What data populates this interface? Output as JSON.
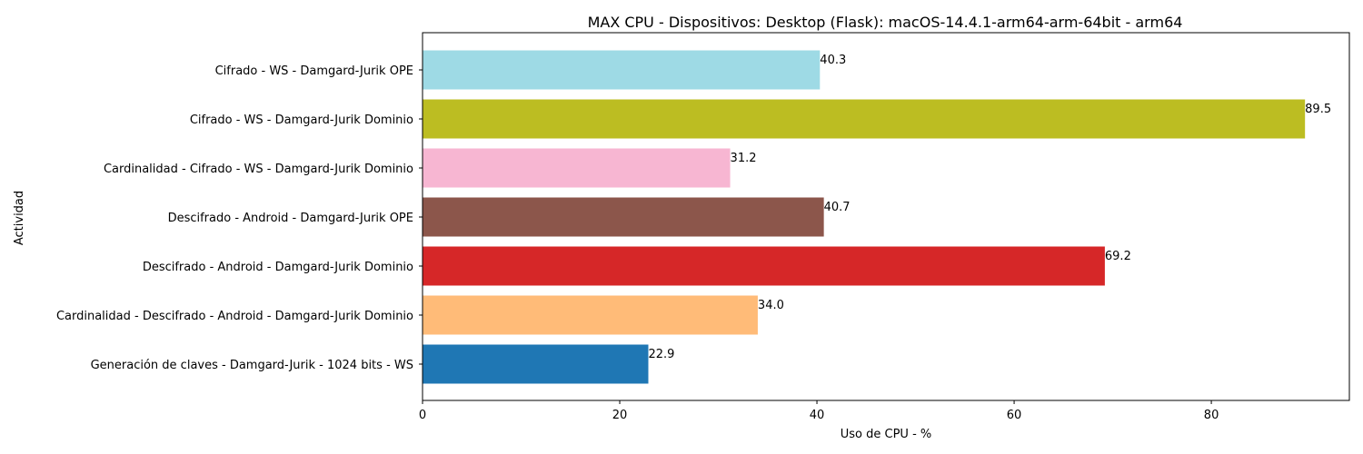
{
  "chart_data": {
    "type": "bar",
    "orientation": "horizontal",
    "title": "MAX CPU - Dispositivos: Desktop (Flask): macOS-14.4.1-arm64-arm-64bit - arm64",
    "xlabel": "Uso de CPU - %",
    "ylabel": "Actividad",
    "xlim": [
      0,
      94
    ],
    "xticks": [
      0,
      20,
      40,
      60,
      80
    ],
    "grid": false,
    "legend": "none",
    "categories": [
      "Generación de claves - Damgard-Jurik - 1024 bits - WS",
      "Cardinalidad - Descifrado - Android - Damgard-Jurik Dominio",
      "Descifrado - Android - Damgard-Jurik Dominio",
      "Descifrado - Android - Damgard-Jurik OPE",
      "Cardinalidad - Cifrado - WS - Damgard-Jurik Dominio",
      "Cifrado - WS - Damgard-Jurik Dominio",
      "Cifrado - WS - Damgard-Jurik OPE"
    ],
    "values": [
      22.9,
      34.0,
      69.2,
      40.7,
      31.2,
      89.5,
      40.3
    ],
    "value_labels": [
      "22.9",
      "34.0",
      "69.2",
      "40.7",
      "31.2",
      "89.5",
      "40.3"
    ],
    "colors": [
      "#1f77b4",
      "#ffbb78",
      "#d62728",
      "#8c564b",
      "#f7b6d2",
      "#bcbd22",
      "#9edae5"
    ]
  }
}
